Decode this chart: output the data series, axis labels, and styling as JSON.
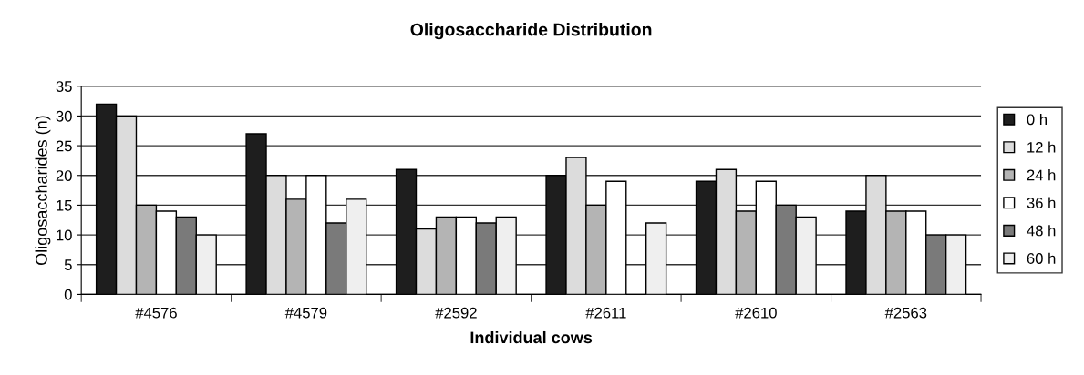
{
  "chart_data": {
    "type": "bar",
    "title": "Oligosaccharide Distribution",
    "xlabel": "Individual cows",
    "ylabel": "Oligosaccharides (n)",
    "categories": [
      "#4576",
      "#4579",
      "#2592",
      "#2611",
      "#2610",
      "#2563"
    ],
    "series": [
      {
        "name": "0 h",
        "color": "#1e1e1e",
        "values": [
          32,
          27,
          21,
          20,
          19,
          14
        ]
      },
      {
        "name": "12 h",
        "color": "#dcdcdc",
        "values": [
          30,
          20,
          11,
          23,
          21,
          20
        ]
      },
      {
        "name": "24 h",
        "color": "#b4b4b4",
        "values": [
          15,
          16,
          13,
          15,
          14,
          14
        ]
      },
      {
        "name": "36 h",
        "color": "#ffffff",
        "values": [
          14,
          20,
          13,
          19,
          19,
          14
        ]
      },
      {
        "name": "48 h",
        "color": "#7a7a7a",
        "values": [
          13,
          12,
          12,
          null,
          15,
          10
        ]
      },
      {
        "name": "60 h",
        "color": "#efefef",
        "values": [
          10,
          16,
          13,
          12,
          13,
          10
        ]
      }
    ],
    "ylim": [
      0,
      35
    ],
    "yticks": [
      0,
      5,
      10,
      15,
      20,
      25,
      30,
      35
    ],
    "grid": "y",
    "legend": "right"
  }
}
